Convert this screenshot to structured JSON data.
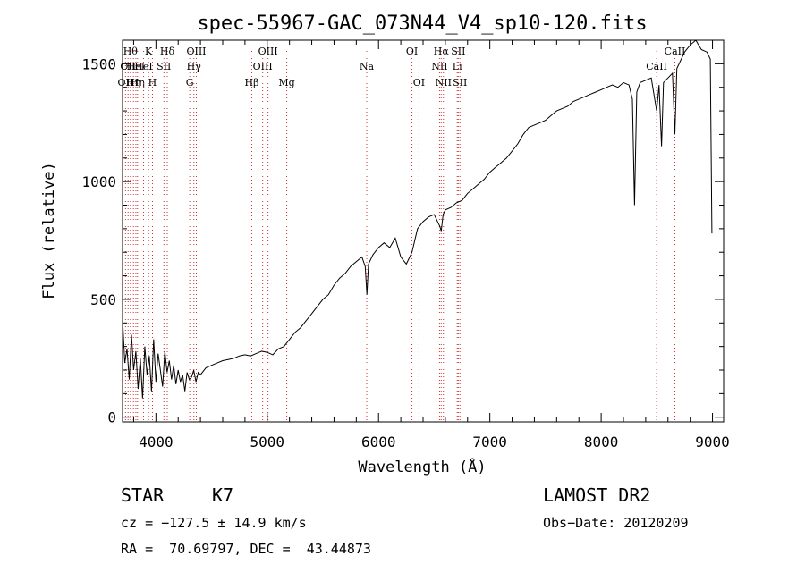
{
  "chart_data": {
    "type": "line",
    "title": "spec-55967-GAC_073N44_V4_sp10-120.fits",
    "xlabel": "Wavelength (Å)",
    "ylabel": "Flux (relative)",
    "xlim": [
      3700,
      9100
    ],
    "ylim": [
      -20,
      1600
    ],
    "x_ticks": [
      4000,
      5000,
      6000,
      7000,
      8000,
      9000
    ],
    "y_ticks": [
      0,
      500,
      1000,
      1500
    ],
    "grid": false,
    "series": [
      {
        "color": "#000000",
        "x": [
          3700,
          3720,
          3740,
          3760,
          3780,
          3800,
          3820,
          3840,
          3860,
          3880,
          3900,
          3920,
          3940,
          3960,
          3980,
          4000,
          4020,
          4040,
          4060,
          4080,
          4100,
          4120,
          4140,
          4160,
          4180,
          4200,
          4220,
          4240,
          4260,
          4280,
          4300,
          4320,
          4340,
          4360,
          4380,
          4400,
          4450,
          4500,
          4550,
          4600,
          4650,
          4700,
          4750,
          4800,
          4850,
          4900,
          4950,
          5000,
          5050,
          5100,
          5150,
          5200,
          5250,
          5300,
          5350,
          5400,
          5450,
          5500,
          5550,
          5600,
          5650,
          5700,
          5750,
          5800,
          5850,
          5880,
          5895,
          5910,
          5950,
          6000,
          6050,
          6100,
          6150,
          6200,
          6250,
          6300,
          6350,
          6400,
          6450,
          6500,
          6550,
          6563,
          6580,
          6600,
          6650,
          6700,
          6750,
          6800,
          6850,
          6900,
          6950,
          7000,
          7050,
          7100,
          7150,
          7200,
          7250,
          7300,
          7350,
          7400,
          7450,
          7500,
          7550,
          7600,
          7650,
          7700,
          7750,
          7800,
          7850,
          7900,
          7950,
          8000,
          8050,
          8100,
          8150,
          8200,
          8250,
          8280,
          8300,
          8320,
          8350,
          8400,
          8450,
          8498,
          8520,
          8542,
          8560,
          8600,
          8640,
          8662,
          8680,
          8700,
          8750,
          8800,
          8850,
          8900,
          8950,
          8980,
          8995
        ],
        "y": [
          420,
          230,
          290,
          160,
          350,
          200,
          280,
          120,
          250,
          80,
          300,
          180,
          260,
          110,
          330,
          150,
          270,
          200,
          130,
          280,
          190,
          240,
          160,
          220,
          140,
          200,
          150,
          180,
          110,
          190,
          160,
          170,
          200,
          150,
          190,
          180,
          210,
          220,
          230,
          240,
          245,
          250,
          260,
          265,
          260,
          270,
          280,
          275,
          265,
          290,
          300,
          330,
          360,
          380,
          410,
          440,
          470,
          500,
          520,
          560,
          590,
          610,
          640,
          660,
          680,
          640,
          520,
          650,
          690,
          720,
          740,
          720,
          760,
          680,
          650,
          700,
          800,
          830,
          850,
          860,
          810,
          790,
          860,
          880,
          890,
          910,
          920,
          950,
          970,
          990,
          1010,
          1040,
          1060,
          1080,
          1100,
          1130,
          1160,
          1200,
          1230,
          1240,
          1250,
          1260,
          1280,
          1300,
          1310,
          1320,
          1340,
          1350,
          1360,
          1370,
          1380,
          1390,
          1400,
          1410,
          1400,
          1420,
          1410,
          1350,
          900,
          1380,
          1420,
          1430,
          1440,
          1300,
          1410,
          1150,
          1420,
          1440,
          1460,
          1200,
          1480,
          1500,
          1550,
          1580,
          1600,
          1560,
          1550,
          1520,
          780
        ]
      }
    ],
    "lines": [
      {
        "x": 3727,
        "label": "OII",
        "row": 2
      },
      {
        "x": 3750,
        "label": "OII",
        "row": 1
      },
      {
        "x": 3771,
        "label": "Hθ",
        "row": 0
      },
      {
        "x": 3798,
        "label": "Hη",
        "row": 2
      },
      {
        "x": 3820,
        "label": "HeI",
        "row": 1
      },
      {
        "x": 3835,
        "label": "Hη",
        "row": 2
      },
      {
        "x": 3889,
        "label": "HeI",
        "row": 1
      },
      {
        "x": 3934,
        "label": "K",
        "row": 0
      },
      {
        "x": 3969,
        "label": "H",
        "row": 2
      },
      {
        "x": 4072,
        "label": "SII",
        "row": 1
      },
      {
        "x": 4102,
        "label": "Hδ",
        "row": 0
      },
      {
        "x": 4304,
        "label": "G",
        "row": 2
      },
      {
        "x": 4341,
        "label": "Hγ",
        "row": 1
      },
      {
        "x": 4363,
        "label": "OIII",
        "row": 0
      },
      {
        "x": 4861,
        "label": "Hβ",
        "row": 2
      },
      {
        "x": 4959,
        "label": "OIII",
        "row": 1
      },
      {
        "x": 5007,
        "label": "OIII",
        "row": 0
      },
      {
        "x": 5175,
        "label": "Mg",
        "row": 2
      },
      {
        "x": 5894,
        "label": "Na",
        "row": 1
      },
      {
        "x": 6300,
        "label": "OI",
        "row": 0
      },
      {
        "x": 6363,
        "label": "OI",
        "row": 2
      },
      {
        "x": 6548,
        "label": "NII",
        "row": 1
      },
      {
        "x": 6563,
        "label": "Hα",
        "row": 0
      },
      {
        "x": 6583,
        "label": "NII",
        "row": 2
      },
      {
        "x": 6707,
        "label": "Li",
        "row": 1
      },
      {
        "x": 6716,
        "label": "SII",
        "row": 0
      },
      {
        "x": 6731,
        "label": "SII",
        "row": 2
      },
      {
        "x": 8498,
        "label": "CaII",
        "row": 1
      },
      {
        "x": 8662,
        "label": "CaII",
        "row": 0
      }
    ]
  },
  "info": {
    "class_label": "STAR",
    "subclass_label": "K7",
    "survey": "LAMOST DR2",
    "redshift": "cz = −127.5 ± 14.9 km/s",
    "obs_date": "Obs−Date: 20120209",
    "coords": "RA =  70.69797, DEC =  43.44873"
  }
}
